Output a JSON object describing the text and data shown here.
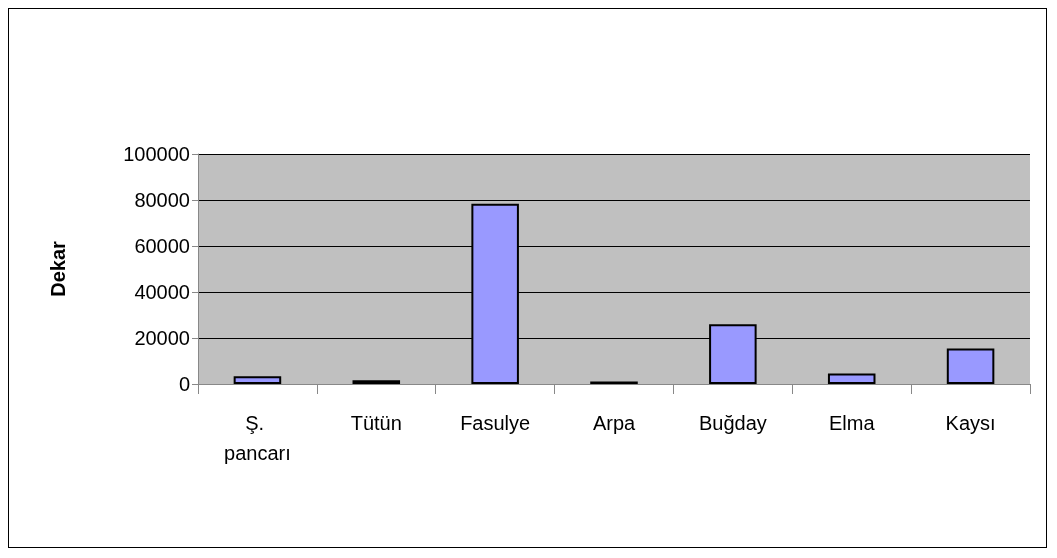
{
  "chart_data": {
    "type": "bar",
    "ylabel": "Dekar",
    "categories": [
      "Ş. pancarı",
      "Tütün",
      "Fasulye",
      "Arpa",
      "Buğday",
      "Elma",
      "Kaysı"
    ],
    "values": [
      3400,
      1600,
      78400,
      1100,
      26000,
      4600,
      15400
    ],
    "color": "#9999ff",
    "ylim": [
      0,
      100000
    ],
    "yticks": [
      0,
      20000,
      40000,
      60000,
      80000,
      100000
    ],
    "grid": "y"
  }
}
